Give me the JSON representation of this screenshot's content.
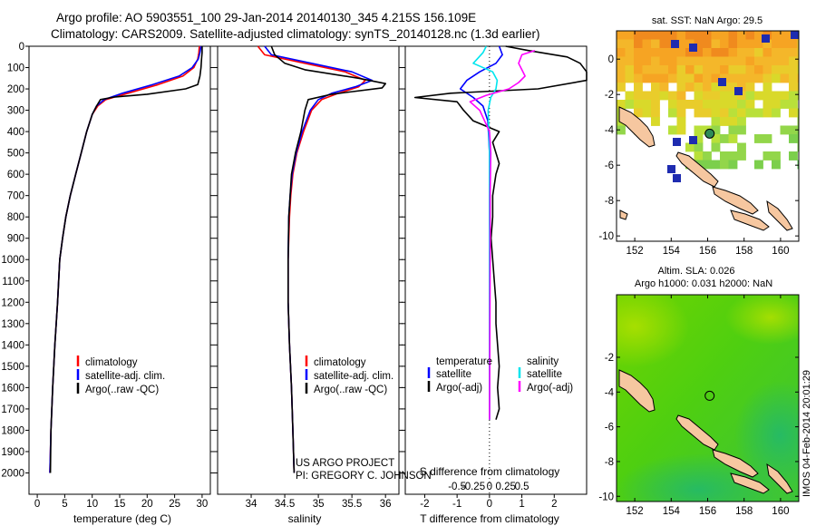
{
  "header": {
    "line1": "Argo profile: AO 5903551_100 29-Jan-2014 20140130_345 4.215S 156.109E",
    "line2": "Climatology: CARS2009. Satellite-adjusted climatology: synTS_20140128.nc (1.3d earlier)"
  },
  "colors": {
    "climatology": "#ff0000",
    "satellite": "#0000ff",
    "argo": "#000000",
    "sat_salinity": "#00e5ee",
    "argo_salinity": "#ff00ff"
  },
  "chart_data": [
    {
      "type": "line",
      "name": "temperature-profile",
      "xlabel": "temperature (deg C)",
      "ylabel": "",
      "xlim": [
        -1.5,
        31.5
      ],
      "ylim": [
        0,
        2100
      ],
      "y_reversed": true,
      "xticks": [
        0,
        5,
        10,
        15,
        20,
        25,
        30
      ],
      "yticks": [
        0,
        100,
        200,
        300,
        400,
        500,
        600,
        700,
        800,
        900,
        1000,
        1100,
        1200,
        1300,
        1400,
        1500,
        1600,
        1700,
        1800,
        1900,
        2000
      ],
      "legend": [
        "climatology",
        "satellite-adj. clim.",
        "Argo(..raw -QC)"
      ],
      "series": [
        {
          "name": "climatology",
          "color": "#ff0000",
          "points": [
            [
              29.5,
              0
            ],
            [
              29.4,
              30
            ],
            [
              29.2,
              60
            ],
            [
              28.5,
              100
            ],
            [
              26.5,
              140
            ],
            [
              22,
              180
            ],
            [
              16.5,
              220
            ],
            [
              12.5,
              250
            ],
            [
              11,
              280
            ],
            [
              10,
              320
            ],
            [
              9,
              400
            ],
            [
              8,
              500
            ],
            [
              7,
              600
            ],
            [
              6,
              700
            ],
            [
              5.2,
              800
            ],
            [
              4.6,
              900
            ],
            [
              4.1,
              1000
            ],
            [
              3.7,
              1200
            ],
            [
              3.2,
              1400
            ],
            [
              2.8,
              1600
            ],
            [
              2.5,
              1800
            ],
            [
              2.3,
              2000
            ]
          ]
        },
        {
          "name": "satellite-adj. clim.",
          "color": "#0000ff",
          "points": [
            [
              29.8,
              0
            ],
            [
              29.6,
              30
            ],
            [
              29.3,
              60
            ],
            [
              28.2,
              100
            ],
            [
              25.8,
              140
            ],
            [
              21,
              180
            ],
            [
              15.5,
              220
            ],
            [
              12.2,
              250
            ],
            [
              10.8,
              280
            ],
            [
              10,
              320
            ],
            [
              9,
              400
            ],
            [
              8,
              500
            ],
            [
              7,
              600
            ],
            [
              6,
              700
            ],
            [
              5.2,
              800
            ],
            [
              4.6,
              900
            ],
            [
              4.1,
              1000
            ],
            [
              3.7,
              1200
            ],
            [
              3.2,
              1400
            ],
            [
              2.8,
              1600
            ],
            [
              2.5,
              1800
            ],
            [
              2.3,
              2000
            ]
          ]
        },
        {
          "name": "Argo(..raw -QC)",
          "color": "#000000",
          "points": [
            [
              30,
              0
            ],
            [
              30,
              30
            ],
            [
              29.9,
              60
            ],
            [
              29.8,
              100
            ],
            [
              29.6,
              140
            ],
            [
              29.2,
              180
            ],
            [
              27,
              200
            ],
            [
              20,
              225
            ],
            [
              14,
              238
            ],
            [
              11.5,
              250
            ],
            [
              10.8,
              280
            ],
            [
              10,
              320
            ],
            [
              9,
              400
            ],
            [
              8,
              500
            ],
            [
              7,
              600
            ],
            [
              6,
              700
            ],
            [
              5.2,
              800
            ],
            [
              4.6,
              900
            ],
            [
              4.1,
              1000
            ],
            [
              3.7,
              1200
            ],
            [
              3.2,
              1400
            ],
            [
              2.8,
              1600
            ],
            [
              2.5,
              1800
            ],
            [
              2.4,
              2000
            ]
          ]
        }
      ]
    },
    {
      "type": "line",
      "name": "salinity-profile",
      "xlabel": "salinity",
      "xlim": [
        33.5,
        36.2
      ],
      "ylim": [
        0,
        2100
      ],
      "y_reversed": true,
      "xticks": [
        34,
        34.5,
        35,
        35.5,
        36
      ],
      "legend": [
        "climatology",
        "satellite-adj. clim.",
        "Argo(..raw -QC)"
      ],
      "annotation": [
        "US ARGO PROJECT",
        "PI: GREGORY C. JOHNSON"
      ],
      "series": [
        {
          "name": "climatology",
          "color": "#ff0000",
          "points": [
            [
              34.1,
              0
            ],
            [
              34.2,
              40
            ],
            [
              34.8,
              80
            ],
            [
              35.4,
              120
            ],
            [
              35.7,
              160
            ],
            [
              35.6,
              190
            ],
            [
              35.3,
              220
            ],
            [
              35.05,
              250
            ],
            [
              34.9,
              300
            ],
            [
              34.78,
              400
            ],
            [
              34.68,
              500
            ],
            [
              34.62,
              600
            ],
            [
              34.59,
              700
            ],
            [
              34.57,
              800
            ],
            [
              34.55,
              1000
            ],
            [
              34.55,
              1200
            ],
            [
              34.57,
              1400
            ],
            [
              34.6,
              1600
            ],
            [
              34.62,
              1800
            ],
            [
              34.64,
              2000
            ]
          ]
        },
        {
          "name": "satellite-adj. clim.",
          "color": "#0000ff",
          "points": [
            [
              34.2,
              0
            ],
            [
              34.3,
              40
            ],
            [
              34.9,
              80
            ],
            [
              35.5,
              120
            ],
            [
              35.8,
              160
            ],
            [
              35.55,
              190
            ],
            [
              35.2,
              220
            ],
            [
              35,
              250
            ],
            [
              34.88,
              300
            ],
            [
              34.76,
              400
            ],
            [
              34.67,
              500
            ],
            [
              34.61,
              600
            ],
            [
              34.58,
              700
            ],
            [
              34.56,
              800
            ],
            [
              34.55,
              1000
            ],
            [
              34.55,
              1200
            ],
            [
              34.57,
              1400
            ],
            [
              34.6,
              1600
            ],
            [
              34.62,
              1800
            ],
            [
              34.64,
              2000
            ]
          ]
        },
        {
          "name": "Argo(..raw -QC)",
          "color": "#000000",
          "points": [
            [
              34.3,
              0
            ],
            [
              34.35,
              40
            ],
            [
              34.5,
              80
            ],
            [
              34.8,
              110
            ],
            [
              35.6,
              150
            ],
            [
              36,
              175
            ],
            [
              35.95,
              195
            ],
            [
              35.2,
              225
            ],
            [
              34.85,
              250
            ],
            [
              34.8,
              300
            ],
            [
              34.74,
              400
            ],
            [
              34.66,
              500
            ],
            [
              34.6,
              600
            ],
            [
              34.58,
              700
            ],
            [
              34.56,
              800
            ],
            [
              34.55,
              1000
            ],
            [
              34.55,
              1200
            ],
            [
              34.57,
              1400
            ],
            [
              34.6,
              1600
            ],
            [
              34.62,
              1800
            ],
            [
              34.64,
              2000
            ]
          ]
        }
      ]
    },
    {
      "type": "line",
      "name": "difference-profile",
      "xlabel_top": "S difference from climatology",
      "xlabel_bottom": "T difference from climatology",
      "xlim": [
        -2.6,
        3.0
      ],
      "ylim": [
        0,
        2100
      ],
      "y_reversed": true,
      "xticks_t": [
        -2,
        -1,
        0,
        1,
        2
      ],
      "xticks_s": [
        -0.5,
        -0.25,
        0,
        0.25,
        0.5
      ],
      "legend_temperature": {
        "title": "temperature",
        "items": [
          "satellite",
          "Argo(-adj)"
        ]
      },
      "legend_salinity": {
        "title": "salinity",
        "items": [
          "satellite",
          "Argo(-adj)"
        ]
      },
      "series": [
        {
          "name": "temperature satellite",
          "color": "#0000ff",
          "points": [
            [
              0.3,
              0
            ],
            [
              0.4,
              40
            ],
            [
              0.2,
              80
            ],
            [
              -0.3,
              120
            ],
            [
              -0.7,
              160
            ],
            [
              -0.9,
              200
            ],
            [
              -0.5,
              240
            ],
            [
              -0.2,
              280
            ],
            [
              -0.05,
              350
            ],
            [
              0,
              500
            ],
            [
              0,
              1000
            ],
            [
              0,
              1500
            ],
            [
              0,
              1750
            ]
          ]
        },
        {
          "name": "temperature Argo(-adj)",
          "color": "#000000",
          "points": [
            [
              0.5,
              0
            ],
            [
              1.2,
              20
            ],
            [
              2.4,
              50
            ],
            [
              2.8,
              80
            ],
            [
              3,
              120
            ],
            [
              3,
              160
            ],
            [
              1.5,
              200
            ],
            [
              -1.2,
              220
            ],
            [
              -2.3,
              240
            ],
            [
              -1,
              260
            ],
            [
              -0.8,
              300
            ],
            [
              -0.5,
              350
            ],
            [
              0.3,
              400
            ],
            [
              0.1,
              450
            ],
            [
              0.2,
              500
            ],
            [
              0.3,
              550
            ],
            [
              0.2,
              600
            ],
            [
              0.1,
              700
            ],
            [
              0.1,
              800
            ],
            [
              0.05,
              900
            ],
            [
              0.1,
              1000
            ],
            [
              0.15,
              1100
            ],
            [
              0.2,
              1200
            ],
            [
              0.2,
              1300
            ],
            [
              0.25,
              1400
            ],
            [
              0.3,
              1500
            ],
            [
              0.25,
              1600
            ],
            [
              0.3,
              1700
            ],
            [
              0.2,
              1750
            ]
          ]
        },
        {
          "name": "salinity satellite",
          "color": "#00e5ee",
          "points": [
            [
              -0.05,
              0
            ],
            [
              -0.1,
              30
            ],
            [
              -0.25,
              80
            ],
            [
              0.05,
              120
            ],
            [
              0.12,
              160
            ],
            [
              0.1,
              200
            ],
            [
              0.02,
              240
            ],
            [
              -0.02,
              300
            ],
            [
              0,
              500
            ],
            [
              0,
              1000
            ],
            [
              0,
              1750
            ]
          ]
        },
        {
          "name": "salinity Argo(-adj)",
          "color": "#ff00ff",
          "points": [
            [
              0.7,
              20
            ],
            [
              0.5,
              40
            ],
            [
              0.45,
              80
            ],
            [
              0.5,
              110
            ],
            [
              0.55,
              140
            ],
            [
              0.45,
              170
            ],
            [
              0.3,
              200
            ],
            [
              -0.05,
              230
            ],
            [
              -0.3,
              260
            ],
            [
              -0.15,
              300
            ],
            [
              0,
              400
            ],
            [
              0.02,
              500
            ],
            [
              0.01,
              700
            ],
            [
              0.01,
              1000
            ],
            [
              0,
              1750
            ]
          ]
        }
      ]
    },
    {
      "type": "heatmap",
      "name": "sst-map",
      "title": "sat. SST: NaN Argo: 29.5",
      "xlim": [
        151,
        161
      ],
      "ylim": [
        -10.3,
        1.6
      ],
      "xticks": [
        152,
        154,
        156,
        158,
        160
      ],
      "yticks": [
        0,
        -2,
        -4,
        -6,
        -8,
        -10
      ],
      "profile_location": [
        156.109,
        -4.215
      ]
    },
    {
      "type": "heatmap",
      "name": "sla-map",
      "title": "Altim. SLA: 0.026",
      "subtitle": "Argo h1000: 0.031 h2000: NaN",
      "xlim": [
        151,
        161
      ],
      "ylim": [
        -10.3,
        1.6
      ],
      "xticks": [
        152,
        154,
        156,
        158,
        160
      ],
      "yticks": [
        -2,
        -4,
        -6,
        -8,
        -10
      ],
      "profile_location": [
        156.109,
        -4.215
      ]
    }
  ],
  "footer": {
    "imos_mark": "IMOS 04-Feb-2014 20:01:29"
  }
}
